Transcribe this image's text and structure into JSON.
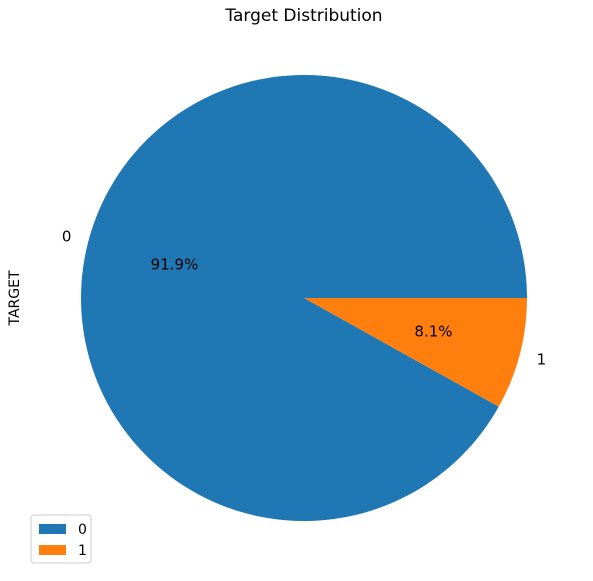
{
  "chart_data": {
    "type": "pie",
    "title": "Target Distribution",
    "ylabel": "TARGET",
    "categories": [
      "0",
      "1"
    ],
    "values": [
      91.9,
      8.1
    ],
    "pct_labels": [
      "91.9%",
      "8.1%"
    ],
    "colors": [
      "#1f77b4",
      "#ff7f0e"
    ],
    "start_angle_deg": 0,
    "direction": "clockwise",
    "legend": {
      "placement": "lower-left",
      "entries": [
        "0",
        "1"
      ]
    }
  }
}
